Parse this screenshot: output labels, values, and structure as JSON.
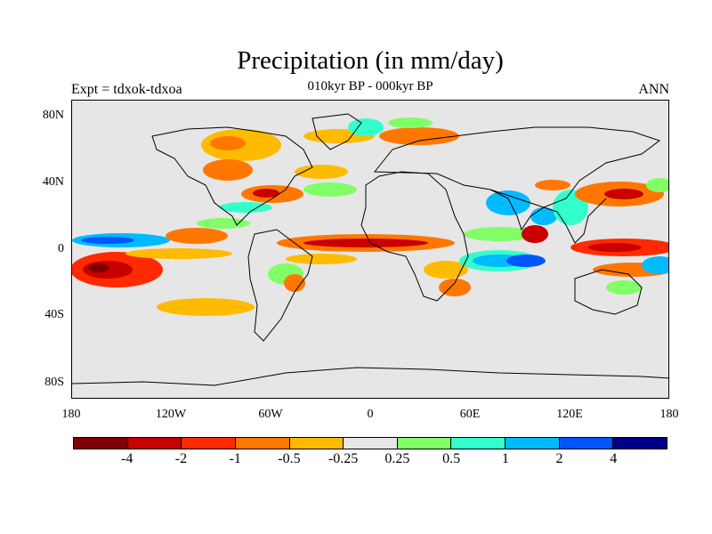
{
  "header": {
    "title": "Precipitation (in mm/day)",
    "subtitle": "010kyr BP - 000kyr BP",
    "left_label": "Expt = tdxok-tdxoa",
    "right_label": "ANN"
  },
  "map": {
    "projection": "cylindrical equidistant",
    "background_color": "#e6e6e6",
    "lat_ticks": [
      "80N",
      "40N",
      "0",
      "40S",
      "80S"
    ],
    "lon_ticks": [
      "180",
      "120W",
      "60W",
      "0",
      "60E",
      "120E",
      "180"
    ]
  },
  "colorbar": {
    "colors": [
      "#7f0000",
      "#c80000",
      "#ff2a00",
      "#ff7700",
      "#ffbb00",
      "#e6e6e6",
      "#80ff66",
      "#33ffcc",
      "#00bbff",
      "#0055ff",
      "#000088"
    ],
    "labels": [
      "-4",
      "-2",
      "-1",
      "-0.5",
      "-0.25",
      "0.25",
      "0.5",
      "1",
      "2",
      "4"
    ]
  }
}
